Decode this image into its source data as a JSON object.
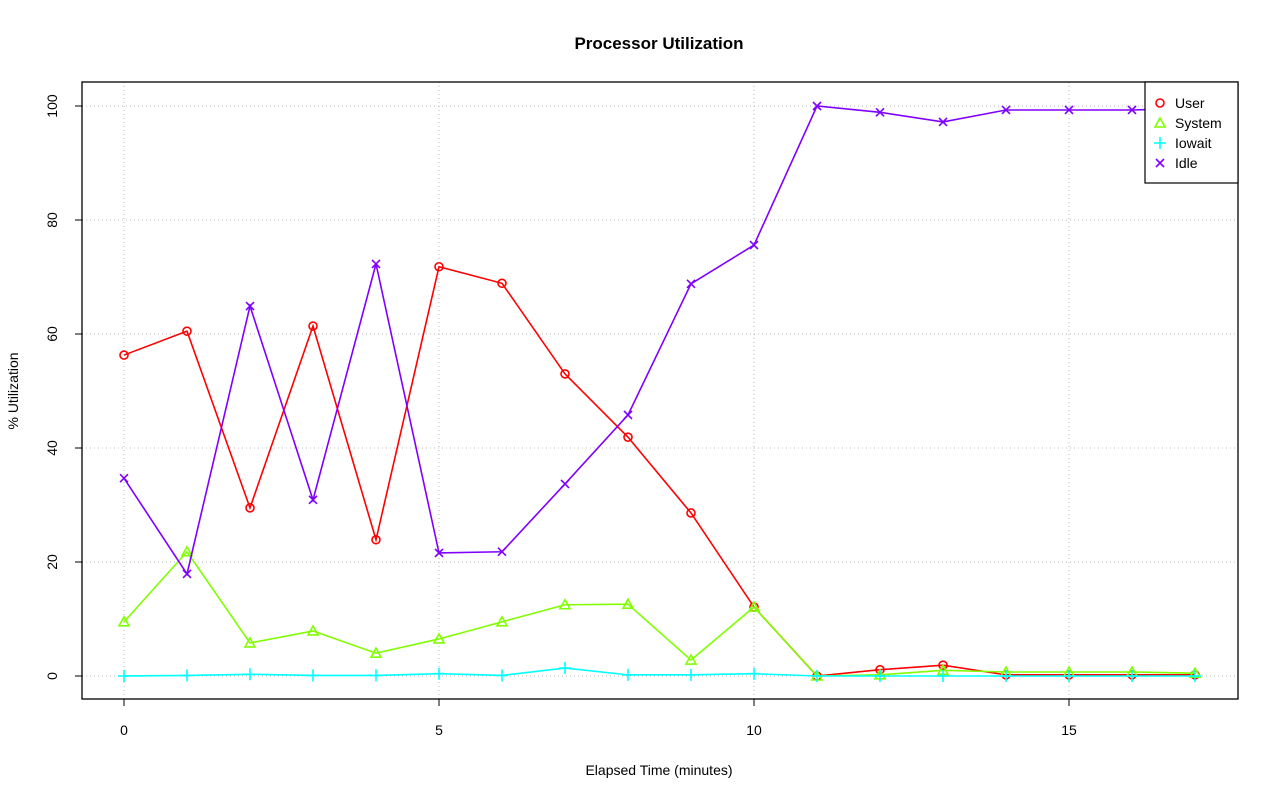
{
  "chart_data": {
    "type": "line",
    "title": "Processor Utilization",
    "xlabel": "Elapsed Time (minutes)",
    "ylabel": "% Utilization",
    "xlim": [
      0,
      17
    ],
    "ylim": [
      0,
      100
    ],
    "x_ticks": [
      "0",
      "5",
      "10",
      "15"
    ],
    "y_ticks": [
      "0",
      "20",
      "40",
      "60",
      "80",
      "100"
    ],
    "grid": true,
    "legend_position": "top-right",
    "x": [
      0,
      1,
      2,
      3,
      4,
      5,
      6,
      7,
      8,
      9,
      10,
      11,
      12,
      13,
      14,
      15,
      16,
      17
    ],
    "series": [
      {
        "name": "User",
        "color": "#ff0000",
        "marker": "circle",
        "values": [
          56.3,
          60.5,
          29.5,
          61.4,
          23.9,
          71.8,
          68.9,
          53.0,
          41.9,
          28.6,
          12.1,
          0.0,
          1.1,
          1.9,
          0.2,
          0.2,
          0.2,
          0.2
        ]
      },
      {
        "name": "System",
        "color": "#80ff00",
        "marker": "triangle",
        "values": [
          9.5,
          21.8,
          5.8,
          7.9,
          4.0,
          6.5,
          9.5,
          12.5,
          12.6,
          2.8,
          12.1,
          0.0,
          0.2,
          1.0,
          0.7,
          0.7,
          0.7,
          0.5
        ]
      },
      {
        "name": "Iowait",
        "color": "#00ffff",
        "marker": "plus",
        "values": [
          0.0,
          0.1,
          0.3,
          0.1,
          0.1,
          0.4,
          0.1,
          1.4,
          0.2,
          0.2,
          0.4,
          0.0,
          0.0,
          0.0,
          0.0,
          0.0,
          0.0,
          0.0
        ]
      },
      {
        "name": "Idle",
        "color": "#8000ff",
        "marker": "cross",
        "values": [
          34.7,
          17.9,
          64.9,
          30.9,
          72.3,
          21.6,
          21.8,
          33.7,
          45.8,
          68.8,
          75.6,
          100.0,
          98.9,
          97.2,
          99.3,
          99.3,
          99.3,
          99.6
        ]
      }
    ]
  }
}
